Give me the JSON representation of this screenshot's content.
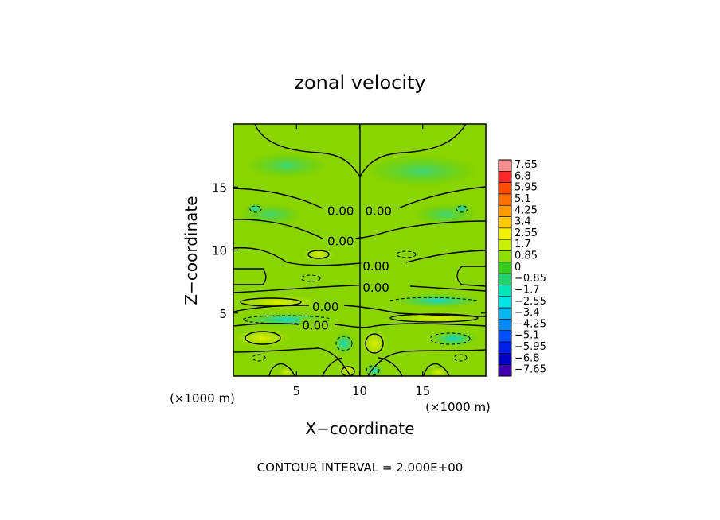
{
  "chart_data": {
    "type": "heatmap",
    "title": "zonal velocity",
    "xlabel": "X−coordinate",
    "ylabel": "Z−coordinate",
    "x_unit_label_left": "(×1000 m)",
    "x_unit_label_right": "(×1000 m)",
    "xlim": [
      0,
      20
    ],
    "ylim": [
      0,
      20
    ],
    "x_ticks": [
      5,
      10,
      15
    ],
    "x_tick_labels": [
      "5",
      "10",
      "15"
    ],
    "y_ticks": [
      5,
      10,
      15
    ],
    "y_tick_labels": [
      "5",
      "10",
      "15"
    ],
    "contour_interval_text": "CONTOUR INTERVAL = 2.000E+00",
    "contour_level_labels": [
      {
        "text": "0.00",
        "x": 8.5,
        "z": 13.1
      },
      {
        "text": "0.00",
        "x": 11.5,
        "z": 13.1
      },
      {
        "text": "0.00",
        "x": 8.5,
        "z": 10.7
      },
      {
        "text": "0.00",
        "x": 11.3,
        "z": 8.7
      },
      {
        "text": "0.00",
        "x": 11.3,
        "z": 7.0
      },
      {
        "text": "0.00",
        "x": 7.3,
        "z": 5.5
      },
      {
        "text": "0.00",
        "x": 6.5,
        "z": 4.0
      }
    ],
    "colorbar": {
      "levels": [
        "7.65",
        "6.8",
        "5.95",
        "5.1",
        "4.25",
        "3.4",
        "2.55",
        "1.7",
        "0.85",
        "0",
        "−0.85",
        "−1.7",
        "−2.55",
        "−3.4",
        "−4.25",
        "−5.1",
        "−5.95",
        "−6.8",
        "−7.65"
      ],
      "colors": [
        "#f38f8f",
        "#ff2828",
        "#ff4a00",
        "#ff7000",
        "#ff9900",
        "#ffc800",
        "#f0f000",
        "#c8f000",
        "#8ce000",
        "#39cc20",
        "#22d26b",
        "#00e6b8",
        "#00e6e6",
        "#00b8f0",
        "#0088ff",
        "#0050ff",
        "#0020e8",
        "#0000c8",
        "#4000b0"
      ]
    }
  }
}
